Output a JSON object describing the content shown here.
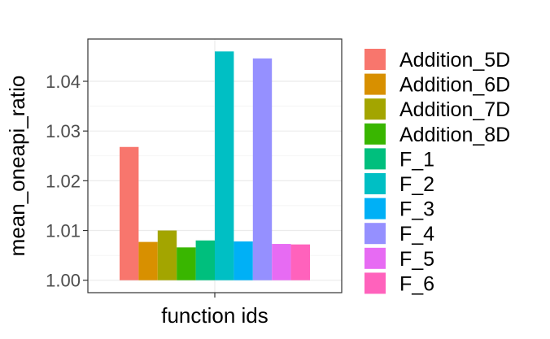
{
  "chart_data": {
    "type": "bar",
    "xlabel": "function ids",
    "ylabel": "mean_oneapi_ratio",
    "x_tick": "",
    "ylim": [
      0.9975,
      1.0485
    ],
    "y_ticks": [
      1.0,
      1.01,
      1.02,
      1.03,
      1.04
    ],
    "y_tick_labels": [
      "1.00",
      "1.01",
      "1.02",
      "1.03",
      "1.04"
    ],
    "grid": true,
    "legend_position": "right",
    "series": [
      {
        "name": "Addition_5D",
        "value": 1.0268,
        "color": "#F8766D"
      },
      {
        "name": "Addition_6D",
        "value": 1.0077,
        "color": "#D89000"
      },
      {
        "name": "Addition_7D",
        "value": 1.01,
        "color": "#A3A500"
      },
      {
        "name": "Addition_8D",
        "value": 1.0066,
        "color": "#39B600"
      },
      {
        "name": "F_1",
        "value": 1.008,
        "color": "#00BF7D"
      },
      {
        "name": "F_2",
        "value": 1.046,
        "color": "#00BFC4"
      },
      {
        "name": "F_3",
        "value": 1.0078,
        "color": "#00B0F6"
      },
      {
        "name": "F_4",
        "value": 1.0446,
        "color": "#9590FF"
      },
      {
        "name": "F_5",
        "value": 1.0073,
        "color": "#E76BF3"
      },
      {
        "name": "F_6",
        "value": 1.0072,
        "color": "#FF62BC"
      }
    ]
  }
}
